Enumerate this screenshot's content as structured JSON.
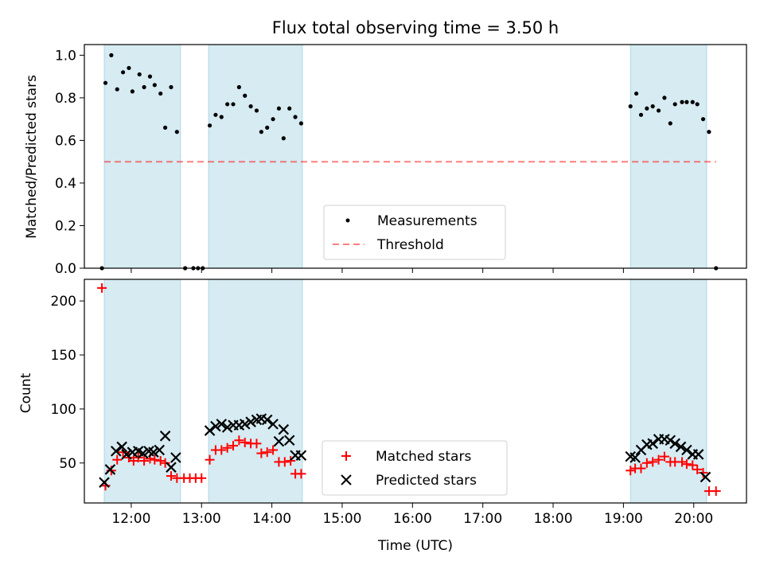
{
  "title": "Flux total observing time = 3.50 h",
  "xlabel": "Time (UTC)",
  "colors": {
    "band": "#add8e6",
    "threshold": "#ff0000",
    "matched": "#ff0000",
    "predicted": "#000000",
    "measurement": "#000000"
  },
  "chart_data": [
    {
      "type": "scatter",
      "ylabel": "Matched/Predicted stars",
      "xlim": [
        "11:20",
        "20:45"
      ],
      "ylim": [
        0,
        1.05
      ],
      "yticks": [
        0.0,
        0.2,
        0.4,
        0.6,
        0.8,
        1.0
      ],
      "shaded_ranges": [
        [
          "11:37",
          "12:42"
        ],
        [
          "13:06",
          "14:26"
        ],
        [
          "19:06",
          "20:11"
        ]
      ],
      "legend": {
        "placement": "lower-center",
        "entries": [
          {
            "label": "Measurements",
            "marker": "dot",
            "color": "#000000"
          },
          {
            "label": "Threshold",
            "marker": "dashed-line",
            "color": "#ff0000"
          }
        ]
      },
      "threshold": {
        "value": 0.5,
        "x_range": [
          "11:37",
          "20:19"
        ]
      },
      "series": [
        {
          "name": "Measurements",
          "points": [
            [
              "11:35",
              0.0
            ],
            [
              "11:38",
              0.87
            ],
            [
              "11:43",
              1.0
            ],
            [
              "11:48",
              0.84
            ],
            [
              "11:53",
              0.92
            ],
            [
              "11:58",
              0.94
            ],
            [
              "12:01",
              0.83
            ],
            [
              "12:07",
              0.91
            ],
            [
              "12:11",
              0.85
            ],
            [
              "12:16",
              0.9
            ],
            [
              "12:20",
              0.86
            ],
            [
              "12:25",
              0.82
            ],
            [
              "12:29",
              0.66
            ],
            [
              "12:34",
              0.85
            ],
            [
              "12:39",
              0.64
            ],
            [
              "12:46",
              0.0
            ],
            [
              "12:53",
              0.0
            ],
            [
              "12:57",
              0.0
            ],
            [
              "13:01",
              0.0
            ],
            [
              "13:07",
              0.67
            ],
            [
              "13:12",
              0.72
            ],
            [
              "13:17",
              0.71
            ],
            [
              "13:22",
              0.77
            ],
            [
              "13:27",
              0.77
            ],
            [
              "13:32",
              0.85
            ],
            [
              "13:37",
              0.81
            ],
            [
              "13:42",
              0.76
            ],
            [
              "13:47",
              0.74
            ],
            [
              "13:51",
              0.64
            ],
            [
              "13:56",
              0.66
            ],
            [
              "14:01",
              0.7
            ],
            [
              "14:06",
              0.75
            ],
            [
              "14:10",
              0.61
            ],
            [
              "14:15",
              0.75
            ],
            [
              "14:20",
              0.71
            ],
            [
              "14:25",
              0.68
            ],
            [
              "19:06",
              0.76
            ],
            [
              "19:11",
              0.82
            ],
            [
              "19:15",
              0.72
            ],
            [
              "19:20",
              0.75
            ],
            [
              "19:25",
              0.76
            ],
            [
              "19:30",
              0.74
            ],
            [
              "19:35",
              0.8
            ],
            [
              "19:40",
              0.68
            ],
            [
              "19:44",
              0.77
            ],
            [
              "19:50",
              0.78
            ],
            [
              "19:54",
              0.78
            ],
            [
              "19:59",
              0.78
            ],
            [
              "20:03",
              0.77
            ],
            [
              "20:08",
              0.7
            ],
            [
              "20:13",
              0.64
            ],
            [
              "20:19",
              0.0
            ]
          ]
        }
      ]
    },
    {
      "type": "scatter",
      "ylabel": "Count",
      "xlim": [
        "11:20",
        "20:45"
      ],
      "ylim": [
        13,
        220
      ],
      "yticks": [
        50,
        100,
        150,
        200
      ],
      "xticks": [
        "12:00",
        "13:00",
        "14:00",
        "15:00",
        "16:00",
        "17:00",
        "18:00",
        "19:00",
        "20:00"
      ],
      "shaded_ranges": [
        [
          "11:37",
          "12:42"
        ],
        [
          "13:06",
          "14:26"
        ],
        [
          "19:06",
          "20:11"
        ]
      ],
      "legend": {
        "placement": "lower-center",
        "entries": [
          {
            "label": "Matched stars",
            "marker": "plus",
            "color": "#ff0000"
          },
          {
            "label": "Predicted stars",
            "marker": "x",
            "color": "#000000"
          }
        ]
      },
      "series": [
        {
          "name": "Matched stars",
          "points": [
            [
              "11:35",
              212
            ],
            [
              "11:38",
              29
            ],
            [
              "11:43",
              43
            ],
            [
              "11:48",
              53
            ],
            [
              "11:53",
              60
            ],
            [
              "11:58",
              55
            ],
            [
              "12:02",
              52
            ],
            [
              "12:06",
              55
            ],
            [
              "12:11",
              52
            ],
            [
              "12:16",
              54
            ],
            [
              "12:20",
              53
            ],
            [
              "12:25",
              52
            ],
            [
              "12:29",
              50
            ],
            [
              "12:34",
              38
            ],
            [
              "12:39",
              36
            ],
            [
              "12:45",
              36
            ],
            [
              "12:50",
              36
            ],
            [
              "12:55",
              36
            ],
            [
              "13:00",
              36
            ],
            [
              "13:07",
              53
            ],
            [
              "13:12",
              62
            ],
            [
              "13:17",
              62
            ],
            [
              "13:22",
              64
            ],
            [
              "13:27",
              66
            ],
            [
              "13:32",
              71
            ],
            [
              "13:37",
              69
            ],
            [
              "13:42",
              68
            ],
            [
              "13:47",
              68
            ],
            [
              "13:51",
              59
            ],
            [
              "13:56",
              60
            ],
            [
              "14:01",
              62
            ],
            [
              "14:06",
              51
            ],
            [
              "14:11",
              51
            ],
            [
              "14:16",
              52
            ],
            [
              "14:20",
              40
            ],
            [
              "14:25",
              40
            ],
            [
              "19:06",
              43
            ],
            [
              "19:10",
              45
            ],
            [
              "19:15",
              45
            ],
            [
              "19:20",
              50
            ],
            [
              "19:25",
              51
            ],
            [
              "19:30",
              53
            ],
            [
              "19:35",
              56
            ],
            [
              "19:40",
              51
            ],
            [
              "19:44",
              51
            ],
            [
              "19:50",
              51
            ],
            [
              "19:54",
              49
            ],
            [
              "19:59",
              48
            ],
            [
              "20:03",
              44
            ],
            [
              "20:08",
              41
            ],
            [
              "20:13",
              24
            ],
            [
              "20:19",
              24
            ]
          ]
        },
        {
          "name": "Predicted stars",
          "points": [
            [
              "11:37",
              32
            ],
            [
              "11:42",
              44
            ],
            [
              "11:47",
              61
            ],
            [
              "11:52",
              65
            ],
            [
              "11:56",
              58
            ],
            [
              "12:01",
              60
            ],
            [
              "12:06",
              61
            ],
            [
              "12:10",
              59
            ],
            [
              "12:15",
              61
            ],
            [
              "12:19",
              60
            ],
            [
              "12:24",
              62
            ],
            [
              "12:29",
              75
            ],
            [
              "12:34",
              46
            ],
            [
              "12:38",
              55
            ],
            [
              "13:07",
              80
            ],
            [
              "13:12",
              84
            ],
            [
              "13:17",
              86
            ],
            [
              "13:22",
              83
            ],
            [
              "13:27",
              85
            ],
            [
              "13:32",
              85
            ],
            [
              "13:37",
              86
            ],
            [
              "13:42",
              88
            ],
            [
              "13:47",
              90
            ],
            [
              "13:51",
              91
            ],
            [
              "13:56",
              90
            ],
            [
              "14:01",
              86
            ],
            [
              "14:06",
              70
            ],
            [
              "14:10",
              81
            ],
            [
              "14:15",
              71
            ],
            [
              "14:20",
              57
            ],
            [
              "14:25",
              57
            ],
            [
              "19:06",
              56
            ],
            [
              "19:10",
              55
            ],
            [
              "19:15",
              62
            ],
            [
              "19:20",
              67
            ],
            [
              "19:25",
              68
            ],
            [
              "19:30",
              72
            ],
            [
              "19:35",
              72
            ],
            [
              "19:40",
              71
            ],
            [
              "19:44",
              68
            ],
            [
              "19:49",
              65
            ],
            [
              "19:54",
              62
            ],
            [
              "19:59",
              58
            ],
            [
              "20:04",
              58
            ],
            [
              "20:10",
              37
            ]
          ]
        }
      ]
    }
  ]
}
